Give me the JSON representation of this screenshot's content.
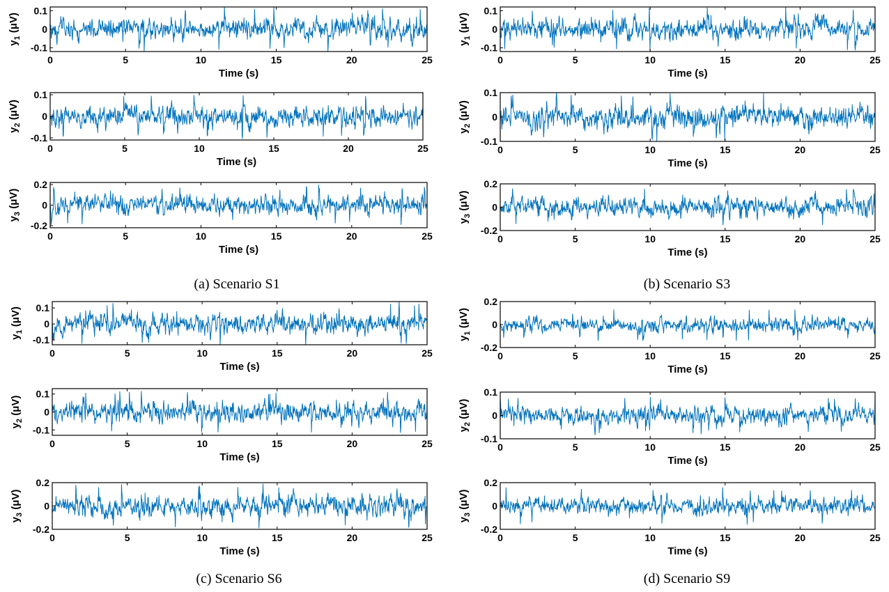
{
  "colors": {
    "signal": "#0072BD",
    "axes": "#000000"
  },
  "panels": [
    {
      "caption": "(a) Scenario S1",
      "chart_data": [
        {
          "type": "line",
          "xlabel": "Time (s)",
          "ylabel": "y_1 (μV)",
          "xlim": [
            0,
            25
          ],
          "ylim": [
            -0.12,
            0.12
          ],
          "xticks": [
            "0",
            "5",
            "10",
            "15",
            "20",
            "25"
          ],
          "yticks": [
            "0.1",
            "0",
            "-0.1"
          ],
          "yticks_values": [
            0.1,
            0,
            -0.1
          ],
          "signal_peak": 0.12
        },
        {
          "type": "line",
          "xlabel": "Time (s)",
          "ylabel": "y_2 (μV)",
          "xlim": [
            0,
            25
          ],
          "ylim": [
            -0.11,
            0.11
          ],
          "xticks": [
            "0",
            "5",
            "10",
            "15",
            "20",
            "25"
          ],
          "yticks": [
            "0.1",
            "0",
            "-0.1"
          ],
          "yticks_values": [
            0.1,
            0,
            -0.1
          ],
          "signal_peak": 0.1
        },
        {
          "type": "line",
          "xlabel": "Time (s)",
          "ylabel": "y_3 (μV)",
          "xlim": [
            0,
            25
          ],
          "ylim": [
            -0.22,
            0.22
          ],
          "xticks": [
            "0",
            "5",
            "10",
            "15",
            "20",
            "25"
          ],
          "yticks": [
            "0.2",
            "0",
            "-0.2"
          ],
          "yticks_values": [
            0.2,
            0,
            -0.2
          ],
          "signal_peak": 0.2
        }
      ]
    },
    {
      "caption": "(b) Scenario S3",
      "chart_data": [
        {
          "type": "line",
          "xlabel": "Time (s)",
          "ylabel": "y_1 (μV)",
          "xlim": [
            0,
            25
          ],
          "ylim": [
            -0.12,
            0.12
          ],
          "xticks": [
            "0",
            "5",
            "10",
            "15",
            "20",
            "25"
          ],
          "yticks": [
            "0.1",
            "0",
            "-0.1"
          ],
          "yticks_values": [
            0.1,
            0,
            -0.1
          ],
          "signal_peak": 0.12
        },
        {
          "type": "line",
          "xlabel": "Time (s)",
          "ylabel": "y_2 (μV)",
          "xlim": [
            0,
            25
          ],
          "ylim": [
            -0.1,
            0.1
          ],
          "xticks": [
            "0",
            "5",
            "10",
            "15",
            "20",
            "25"
          ],
          "yticks": [
            "0.1",
            "0",
            "-0.1"
          ],
          "yticks_values": [
            0.1,
            0,
            -0.1
          ],
          "signal_peak": 0.1
        },
        {
          "type": "line",
          "xlabel": "Time (s)",
          "ylabel": "y_3 (μV)",
          "xlim": [
            0,
            25
          ],
          "ylim": [
            -0.2,
            0.2
          ],
          "xticks": [
            "0",
            "5",
            "10",
            "15",
            "20",
            "25"
          ],
          "yticks": [
            "0.2",
            "0",
            "-0.2"
          ],
          "yticks_values": [
            0.2,
            0,
            -0.2
          ],
          "signal_peak": 0.17
        }
      ]
    },
    {
      "caption": "(c) Scenario S6",
      "chart_data": [
        {
          "type": "line",
          "xlabel": "Time (s)",
          "ylabel": "y_1 (μV)",
          "xlim": [
            0,
            25
          ],
          "ylim": [
            -0.13,
            0.14
          ],
          "xticks": [
            "0",
            "5",
            "10",
            "15",
            "20",
            "25"
          ],
          "yticks": [
            "0.1",
            "0",
            "-0.1"
          ],
          "yticks_values": [
            0.1,
            0,
            -0.1
          ],
          "signal_peak": 0.14
        },
        {
          "type": "line",
          "xlabel": "Time (s)",
          "ylabel": "y_2 (μV)",
          "xlim": [
            0,
            25
          ],
          "ylim": [
            -0.13,
            0.13
          ],
          "xticks": [
            "0",
            "5",
            "10",
            "15",
            "20",
            "25"
          ],
          "yticks": [
            "0.1",
            "0",
            "-0.1"
          ],
          "yticks_values": [
            0.1,
            0,
            -0.1
          ],
          "signal_peak": 0.12
        },
        {
          "type": "line",
          "xlabel": "Time (s)",
          "ylabel": "y_3 (μV)",
          "xlim": [
            0,
            25
          ],
          "ylim": [
            -0.2,
            0.2
          ],
          "xticks": [
            "0",
            "5",
            "10",
            "15",
            "20",
            "25"
          ],
          "yticks": [
            "0.2",
            "0",
            "-0.2"
          ],
          "yticks_values": [
            0.2,
            0,
            -0.2
          ],
          "signal_peak": 0.19
        }
      ]
    },
    {
      "caption": "(d) Scenario S9",
      "chart_data": [
        {
          "type": "line",
          "xlabel": "Time (s)",
          "ylabel": "y_1 (μV)",
          "xlim": [
            0,
            25
          ],
          "ylim": [
            -0.2,
            0.2
          ],
          "xticks": [
            "0",
            "5",
            "10",
            "15",
            "20",
            "25"
          ],
          "yticks": [
            "0.2",
            "0",
            "-0.2"
          ],
          "yticks_values": [
            0.2,
            0,
            -0.2
          ],
          "signal_peak": 0.14
        },
        {
          "type": "line",
          "xlabel": "Time (s)",
          "ylabel": "y_2 (μV)",
          "xlim": [
            0,
            25
          ],
          "ylim": [
            -0.1,
            0.1
          ],
          "xticks": [
            "0",
            "5",
            "10",
            "15",
            "20",
            "25"
          ],
          "yticks": [
            "0.1",
            "0",
            "-0.1"
          ],
          "yticks_values": [
            0.1,
            0,
            -0.1
          ],
          "signal_peak": 0.08
        },
        {
          "type": "line",
          "xlabel": "Time (s)",
          "ylabel": "y_3 (μV)",
          "xlim": [
            0,
            25
          ],
          "ylim": [
            -0.2,
            0.2
          ],
          "xticks": [
            "0",
            "5",
            "10",
            "15",
            "20",
            "25"
          ],
          "yticks": [
            "0.2",
            "0",
            "-0.2"
          ],
          "yticks_values": [
            0.2,
            0,
            -0.2
          ],
          "signal_peak": 0.16
        }
      ]
    }
  ]
}
